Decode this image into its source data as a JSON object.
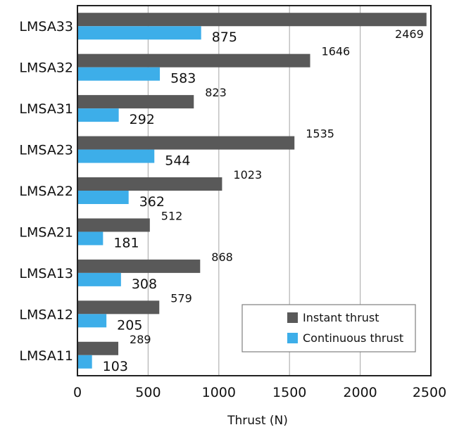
{
  "chart_data": {
    "type": "bar",
    "orientation": "horizontal",
    "title": "",
    "xlabel": "Thrust (N)",
    "ylabel": "",
    "xlim": [
      0,
      2500
    ],
    "xticks": [
      0,
      500,
      1000,
      1500,
      2000,
      2500
    ],
    "grid": true,
    "legend_position": "bottom-right",
    "categories": [
      "LMSA33",
      "LMSA32",
      "LMSA31",
      "LMSA23",
      "LMSA22",
      "LMSA21",
      "LMSA13",
      "LMSA12",
      "LMSA11"
    ],
    "series": [
      {
        "name": "Instant thrust",
        "color": "#595959",
        "values": [
          2469,
          1646,
          823,
          1535,
          1023,
          512,
          868,
          579,
          289
        ]
      },
      {
        "name": "Continuous thrust",
        "color": "#3daee9",
        "values": [
          875,
          583,
          292,
          544,
          362,
          181,
          308,
          205,
          103
        ]
      }
    ]
  }
}
